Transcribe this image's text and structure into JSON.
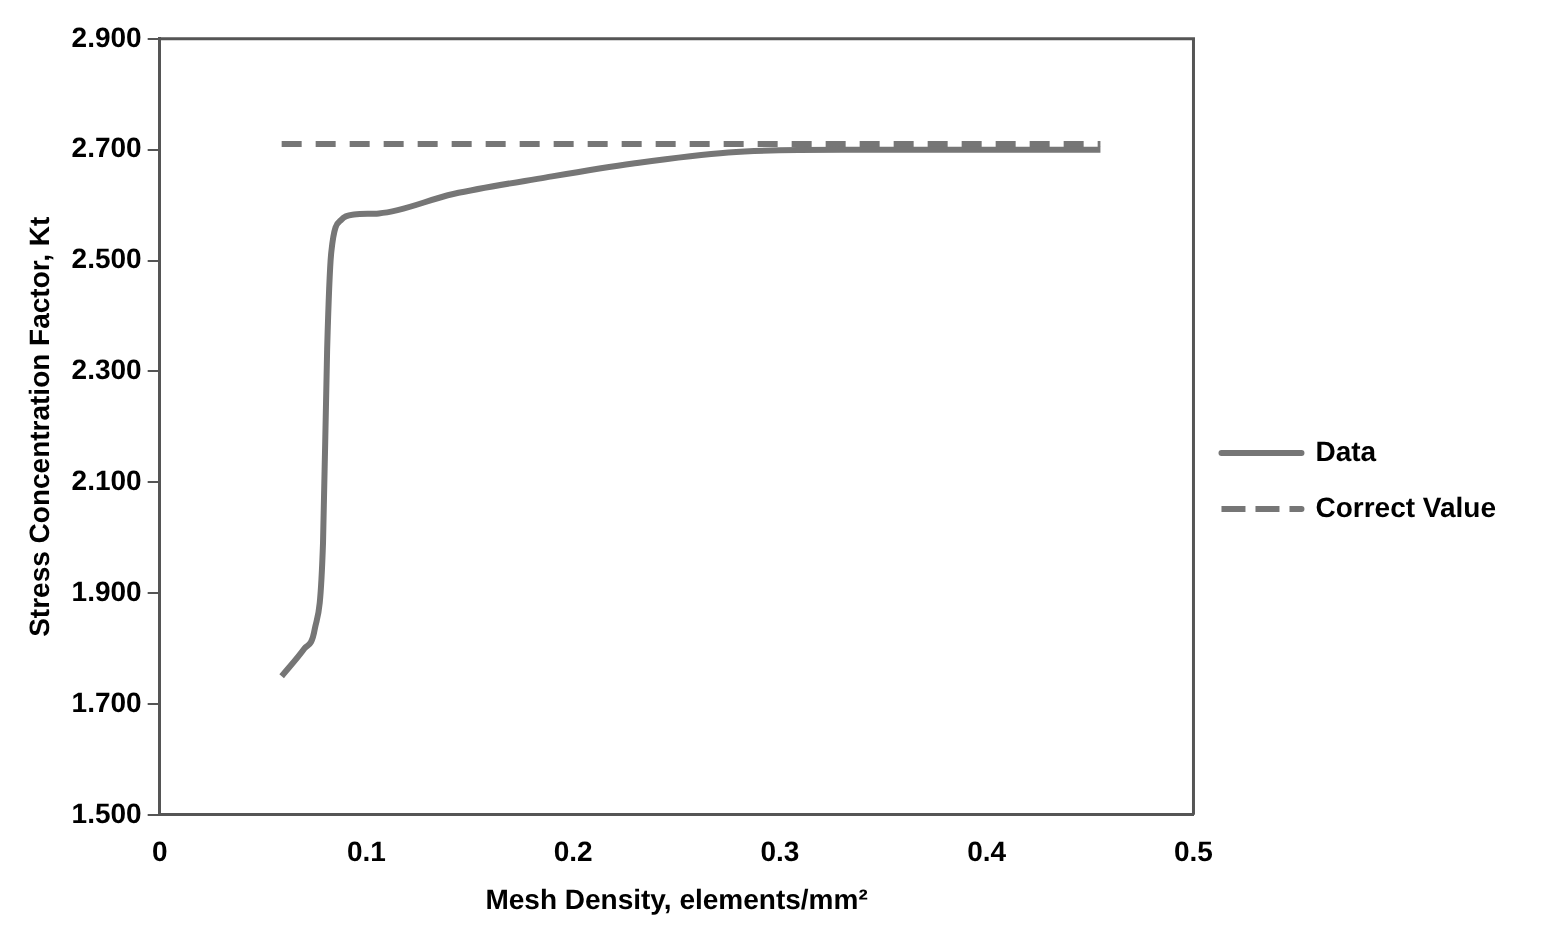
{
  "chart_data": {
    "type": "line",
    "xlabel": "Mesh Density, elements/mm²",
    "ylabel": "Stress Concentration Factor, Kt",
    "xlim": [
      0,
      0.5
    ],
    "xticks": [
      0,
      0.1,
      0.2,
      0.3,
      0.4,
      0.5
    ],
    "ylim": [
      1.5,
      2.9
    ],
    "yticks": [
      {
        "value": 1.5,
        "label": "1.500"
      },
      {
        "value": 1.7,
        "label": "1.700"
      },
      {
        "value": 1.9,
        "label": "1.900"
      },
      {
        "value": 2.1,
        "label": "2.100"
      },
      {
        "value": 2.3,
        "label": "2.300"
      },
      {
        "value": 2.5,
        "label": "2.500"
      },
      {
        "value": 2.7,
        "label": "2.700"
      },
      {
        "value": 2.9,
        "label": "2.900"
      }
    ],
    "grid": false,
    "legend": "right",
    "marker": "none",
    "series": [
      {
        "name": "Data",
        "color": "#767676",
        "line_style": "solid",
        "x": [
          0.059,
          0.07,
          0.075,
          0.079,
          0.081,
          0.083,
          0.088,
          0.094,
          0.106,
          0.142,
          0.187,
          0.229,
          0.275,
          0.33,
          0.4,
          0.455
        ],
        "values": [
          1.75,
          1.8,
          1.835,
          1.99,
          2.34,
          2.515,
          2.574,
          2.583,
          2.585,
          2.62,
          2.65,
          2.675,
          2.695,
          2.7,
          2.7,
          2.7
        ]
      },
      {
        "name": "Correct Value",
        "color": "#767676",
        "line_style": "dashed",
        "x": [
          0.059,
          0.455
        ],
        "values": [
          2.71,
          2.71
        ]
      }
    ]
  }
}
